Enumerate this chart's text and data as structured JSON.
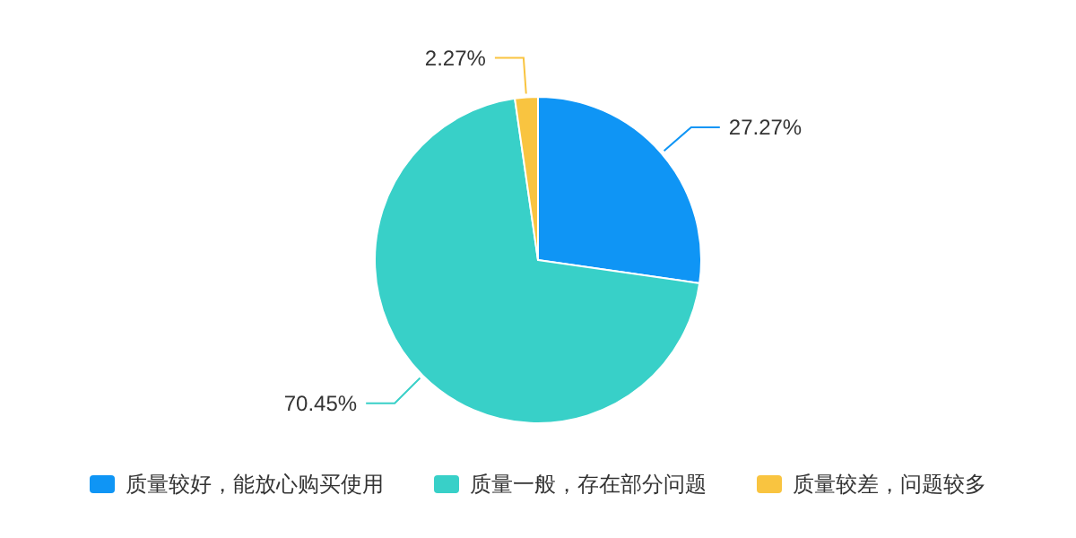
{
  "chart_data": {
    "type": "pie",
    "categories": [
      "质量较好，能放心购买使用",
      "质量一般，存在部分问题",
      "质量较差，问题较多"
    ],
    "values": [
      27.27,
      70.45,
      2.27
    ],
    "colors": [
      "#0f95f5",
      "#38d0c8",
      "#f9c440"
    ],
    "value_labels": [
      "27.27%",
      "70.45%",
      "2.27%"
    ],
    "legend": "bottom"
  }
}
